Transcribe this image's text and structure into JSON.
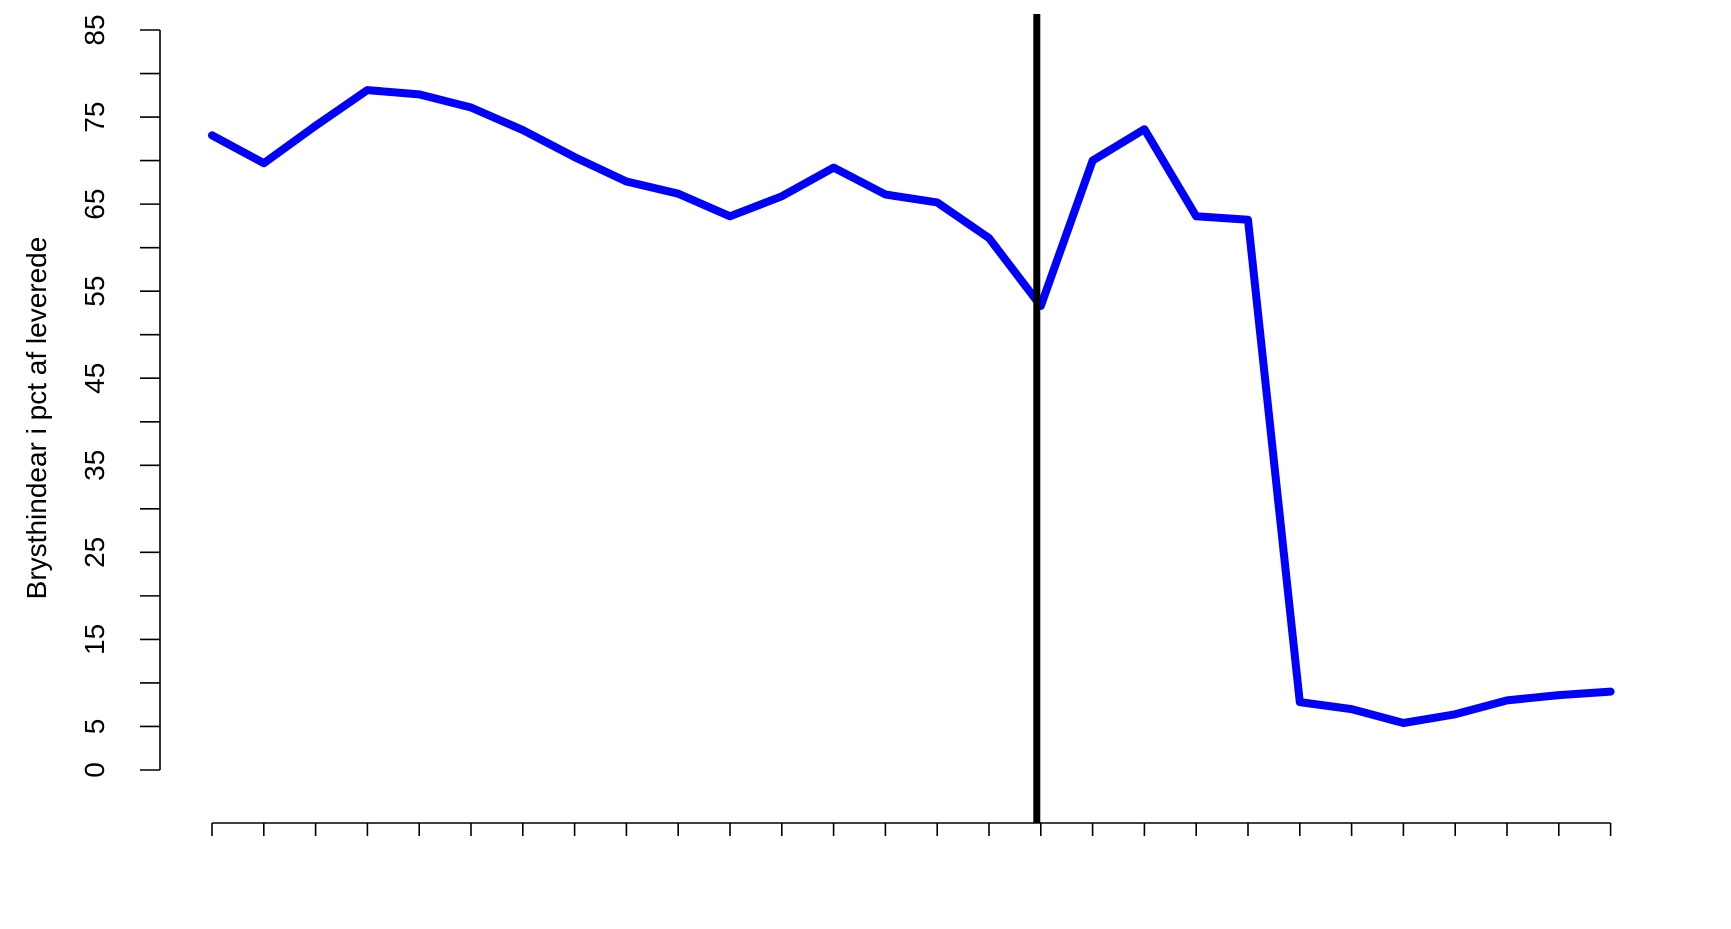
{
  "chart_data": {
    "type": "line",
    "title": "",
    "xlabel": "",
    "ylabel": "Brysthindear i pct af leverede",
    "ylim": [
      0,
      85
    ],
    "y_tick_labels": [
      "0",
      "5",
      "15",
      "25",
      "35",
      "45",
      "55",
      "65",
      "75",
      "85"
    ],
    "y_minor_ticks": [
      10,
      20,
      30,
      40,
      50,
      60,
      70,
      80
    ],
    "x_tick_count": 28,
    "vertical_marker_at_index": 16,
    "series": [
      {
        "color": "#0000ff",
        "values": [
          72.9,
          69.7,
          74.0,
          78.1,
          77.6,
          76.1,
          73.5,
          70.4,
          67.6,
          66.2,
          63.6,
          65.9,
          69.2,
          66.1,
          65.2,
          61.1,
          53.3,
          70.0,
          73.6,
          63.6,
          63.2,
          7.8,
          7.0,
          5.4,
          6.4,
          8.0,
          8.6,
          9.0
        ]
      }
    ],
    "grid": false,
    "marker_color": "#000000"
  }
}
